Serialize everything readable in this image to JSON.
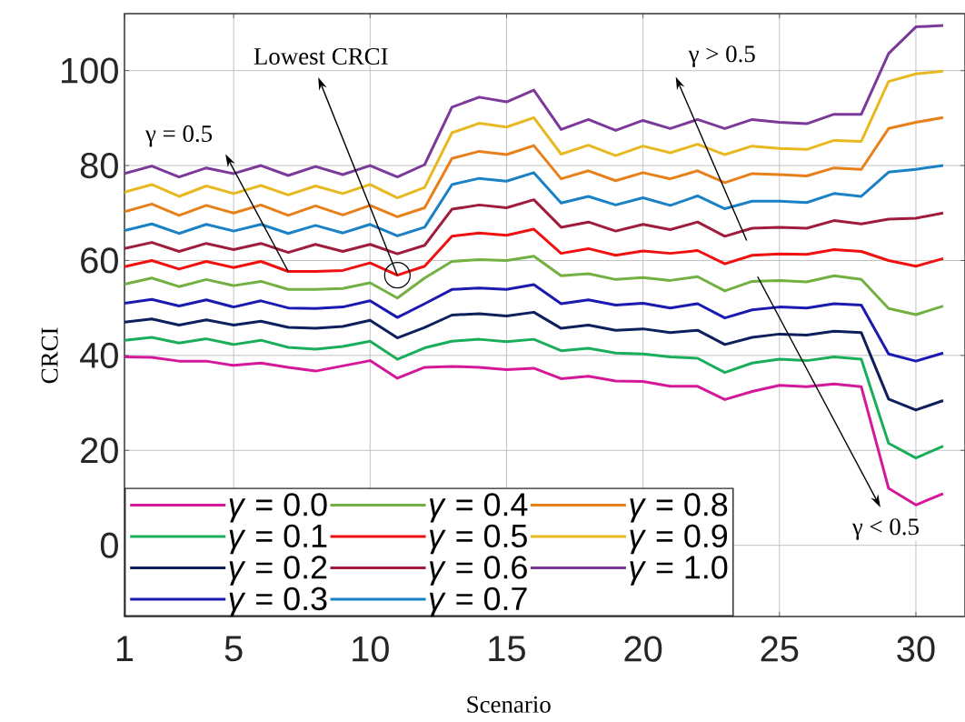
{
  "chart_data": {
    "type": "line",
    "xlabel": "Scenario",
    "ylabel": "CRCI",
    "x": [
      1,
      2,
      3,
      4,
      5,
      6,
      7,
      8,
      9,
      10,
      11,
      12,
      13,
      14,
      15,
      16,
      17,
      18,
      19,
      20,
      21,
      22,
      23,
      24,
      25,
      26,
      27,
      28,
      29,
      30,
      31
    ],
    "xlim": [
      1,
      31.8
    ],
    "ylim": [
      -15,
      112
    ],
    "xticks": [
      1,
      5,
      10,
      15,
      20,
      25,
      30
    ],
    "yticks": [
      0,
      20,
      40,
      60,
      80,
      100
    ],
    "grid": true,
    "legend": "bottom left",
    "annotations": [
      {
        "text": "Lowest CRCI",
        "x": 11,
        "y": 56.9
      },
      {
        "text": "γ = 0.5",
        "x": 7,
        "y": 57.7
      },
      "γ > 0.5",
      "γ < 0.5"
    ],
    "series": [
      {
        "name": "*γ* = 0.0",
        "color": "#d4189a",
        "values": [
          39.7,
          39.6,
          38.8,
          38.8,
          37.9,
          38.4,
          37.5,
          36.7,
          37.8,
          38.9,
          35.2,
          37.5,
          37.7,
          37.5,
          37.0,
          37.3,
          35.1,
          35.6,
          34.6,
          34.5,
          33.5,
          33.5,
          30.7,
          32.4,
          33.7,
          33.4,
          34.0,
          33.4,
          12.0,
          8.5,
          10.9
        ]
      },
      {
        "name": "*γ* = 0.1",
        "color": "#1aae5a",
        "values": [
          43.2,
          43.8,
          42.6,
          43.5,
          42.3,
          43.2,
          41.7,
          41.3,
          41.9,
          43.0,
          39.2,
          41.6,
          43.0,
          43.4,
          42.9,
          43.4,
          41.0,
          41.5,
          40.5,
          40.3,
          39.7,
          39.4,
          36.4,
          38.4,
          39.2,
          38.9,
          39.7,
          39.2,
          21.5,
          18.4,
          20.9
        ]
      },
      {
        "name": "*γ* = 0.2",
        "color": "#0d1f5c",
        "values": [
          47.0,
          47.7,
          46.4,
          47.5,
          46.4,
          47.2,
          45.9,
          45.7,
          46.1,
          47.4,
          43.7,
          45.9,
          48.5,
          48.8,
          48.3,
          49.1,
          45.7,
          46.4,
          45.3,
          45.6,
          44.8,
          45.3,
          42.3,
          43.8,
          44.5,
          44.3,
          45.1,
          44.8,
          30.8,
          28.5,
          30.5
        ]
      },
      {
        "name": "*γ* = 0.3",
        "color": "#1a1ab0",
        "values": [
          51.0,
          51.8,
          50.4,
          51.7,
          50.2,
          51.5,
          50.0,
          49.9,
          50.2,
          51.5,
          48.0,
          50.9,
          53.9,
          54.2,
          53.9,
          54.9,
          50.9,
          51.7,
          50.6,
          51.0,
          50.0,
          50.9,
          47.9,
          49.6,
          50.2,
          50.0,
          50.9,
          50.6,
          40.3,
          38.8,
          40.5
        ]
      },
      {
        "name": "*γ* = 0.4",
        "color": "#72b041",
        "values": [
          55.0,
          56.3,
          54.5,
          56.0,
          54.7,
          55.6,
          53.9,
          53.9,
          54.1,
          55.3,
          52.1,
          56.3,
          59.8,
          60.2,
          60.0,
          60.9,
          56.8,
          57.2,
          56.0,
          56.4,
          55.8,
          56.6,
          53.6,
          55.6,
          55.8,
          55.5,
          56.8,
          56.0,
          49.9,
          48.6,
          50.4
        ]
      },
      {
        "name": "*γ* = 0.5",
        "color": "#f01010",
        "values": [
          58.7,
          60.0,
          58.2,
          59.8,
          58.5,
          59.8,
          57.7,
          57.7,
          57.9,
          59.5,
          56.9,
          58.8,
          65.1,
          65.8,
          65.3,
          66.6,
          61.5,
          62.5,
          61.1,
          62.0,
          61.5,
          62.1,
          59.3,
          61.1,
          61.4,
          61.3,
          62.3,
          61.9,
          60.0,
          58.8,
          60.4
        ]
      },
      {
        "name": "*γ* = 0.6",
        "color": "#a01c3c",
        "values": [
          62.5,
          63.8,
          61.9,
          63.6,
          62.3,
          63.6,
          61.7,
          63.4,
          61.9,
          63.4,
          61.4,
          63.2,
          70.8,
          71.7,
          71.1,
          72.8,
          67.0,
          68.1,
          66.2,
          67.6,
          66.5,
          68.1,
          65.1,
          66.8,
          67.0,
          66.8,
          68.4,
          67.7,
          68.7,
          68.9,
          70.0
        ]
      },
      {
        "name": "*γ* = 0.7",
        "color": "#1a82c4",
        "values": [
          66.3,
          67.7,
          65.7,
          67.6,
          66.2,
          67.6,
          65.7,
          67.4,
          65.8,
          67.6,
          65.2,
          67.0,
          76.0,
          77.3,
          76.7,
          78.5,
          72.1,
          73.5,
          71.7,
          73.2,
          71.6,
          73.6,
          70.9,
          72.5,
          72.5,
          72.2,
          74.1,
          73.5,
          78.6,
          79.2,
          80.0
        ]
      },
      {
        "name": "*γ* = 0.8",
        "color": "#e8801a",
        "values": [
          70.3,
          71.9,
          69.5,
          71.6,
          70.0,
          71.7,
          69.5,
          71.5,
          69.6,
          71.6,
          69.2,
          71.1,
          81.5,
          83.0,
          82.3,
          84.2,
          77.2,
          78.9,
          76.8,
          78.5,
          77.2,
          78.9,
          76.4,
          78.3,
          78.1,
          77.8,
          79.5,
          79.2,
          87.8,
          89.1,
          90.1
        ]
      },
      {
        "name": "*γ* = 0.9",
        "color": "#e8b820",
        "values": [
          74.4,
          76.0,
          73.5,
          75.7,
          74.1,
          75.8,
          73.8,
          75.7,
          74.1,
          76.0,
          73.2,
          75.4,
          86.9,
          88.9,
          88.1,
          90.1,
          82.4,
          84.3,
          82.1,
          84.1,
          82.7,
          84.5,
          82.3,
          84.1,
          83.6,
          83.4,
          85.3,
          85.1,
          97.7,
          99.3,
          99.9
        ]
      },
      {
        "name": "*γ* = 1.0",
        "color": "#7b3a9a",
        "values": [
          78.3,
          79.9,
          77.6,
          79.5,
          78.3,
          80.0,
          77.9,
          79.8,
          78.1,
          80.0,
          77.6,
          80.2,
          92.3,
          94.4,
          93.4,
          95.9,
          87.6,
          89.7,
          87.4,
          89.5,
          87.8,
          89.7,
          87.8,
          89.7,
          89.1,
          88.8,
          90.8,
          90.8,
          103.6,
          109.2,
          109.5
        ]
      }
    ]
  }
}
